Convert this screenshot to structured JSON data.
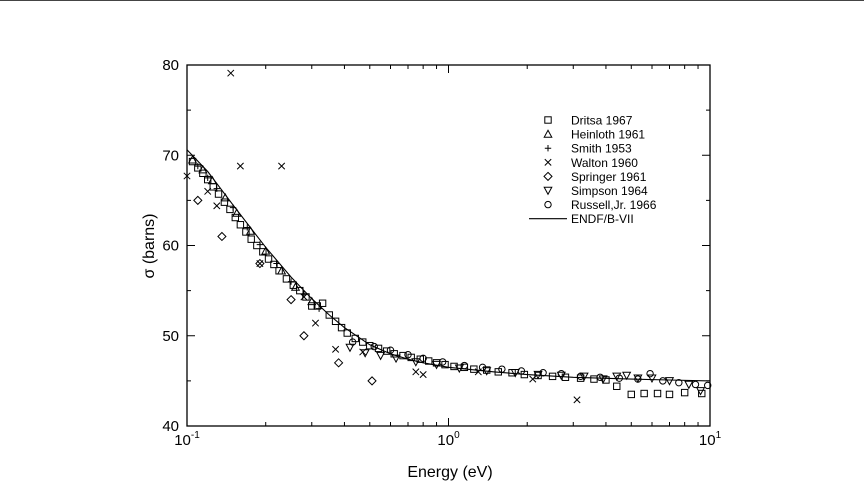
{
  "chart_data": {
    "type": "scatter",
    "title": "",
    "xlabel": "Energy (eV)",
    "ylabel": "σ (barns)",
    "xscale": "log",
    "xlim": [
      0.1,
      10
    ],
    "ylim": [
      40,
      80
    ],
    "grid": false,
    "legend_position": "top-right",
    "x_ticks": [
      {
        "base": "10",
        "exp": "-1"
      },
      {
        "base": "10",
        "exp": "0"
      },
      {
        "base": "10",
        "exp": "1"
      }
    ],
    "y_ticks": [
      "40",
      "50",
      "60",
      "70",
      "80"
    ],
    "series": [
      {
        "name": "Dritsa 1967",
        "marker": "square",
        "points": [
          [
            0.105,
            69.3
          ],
          [
            0.11,
            68.6
          ],
          [
            0.115,
            68.0
          ],
          [
            0.12,
            67.3
          ],
          [
            0.126,
            66.5
          ],
          [
            0.132,
            65.7
          ],
          [
            0.139,
            64.8
          ],
          [
            0.146,
            64.0
          ],
          [
            0.153,
            63.1
          ],
          [
            0.16,
            62.3
          ],
          [
            0.168,
            61.5
          ],
          [
            0.176,
            60.7
          ],
          [
            0.185,
            60.0
          ],
          [
            0.195,
            59.3
          ],
          [
            0.205,
            58.5
          ],
          [
            0.215,
            57.9
          ],
          [
            0.225,
            57.2
          ],
          [
            0.24,
            56.3
          ],
          [
            0.255,
            55.6
          ],
          [
            0.27,
            55.0
          ],
          [
            0.285,
            54.3
          ],
          [
            0.3,
            53.3
          ],
          [
            0.315,
            53.3
          ],
          [
            0.33,
            53.6
          ],
          [
            0.35,
            52.3
          ],
          [
            0.37,
            51.6
          ],
          [
            0.39,
            50.9
          ],
          [
            0.41,
            50.3
          ],
          [
            0.44,
            49.7
          ],
          [
            0.47,
            49.3
          ],
          [
            0.5,
            48.9
          ],
          [
            0.54,
            48.6
          ],
          [
            0.58,
            48.3
          ],
          [
            0.62,
            48.0
          ],
          [
            0.67,
            47.8
          ],
          [
            0.72,
            47.6
          ],
          [
            0.78,
            47.4
          ],
          [
            0.84,
            47.2
          ],
          [
            0.9,
            47.0
          ],
          [
            0.97,
            46.8
          ],
          [
            1.05,
            46.6
          ],
          [
            1.15,
            46.5
          ],
          [
            1.25,
            46.3
          ],
          [
            1.4,
            46.2
          ],
          [
            1.55,
            46.0
          ],
          [
            1.75,
            45.9
          ],
          [
            1.95,
            45.7
          ],
          [
            2.2,
            45.6
          ],
          [
            2.5,
            45.5
          ],
          [
            2.8,
            45.4
          ],
          [
            3.2,
            45.3
          ],
          [
            3.6,
            45.2
          ],
          [
            4.0,
            45.1
          ],
          [
            4.4,
            44.4
          ],
          [
            5.0,
            43.5
          ],
          [
            5.6,
            43.6
          ],
          [
            6.3,
            43.6
          ],
          [
            7.0,
            43.5
          ],
          [
            8.0,
            43.7
          ],
          [
            9.3,
            43.6
          ]
        ]
      },
      {
        "name": "Heinloth 1961",
        "marker": "triangle-up",
        "points": [
          [
            0.105,
            69.5
          ],
          [
            0.115,
            68.4
          ],
          [
            0.125,
            67.2
          ],
          [
            0.14,
            65.3
          ],
          [
            0.155,
            63.6
          ],
          [
            0.175,
            61.6
          ],
          [
            0.2,
            59.4
          ],
          [
            0.23,
            57.2
          ],
          [
            0.26,
            55.4
          ],
          [
            0.3,
            53.8
          ]
        ]
      },
      {
        "name": "Smith 1953",
        "marker": "plus",
        "points": [
          [
            0.11,
            68.8
          ],
          [
            0.12,
            67.5
          ],
          [
            0.13,
            66.3
          ],
          [
            0.15,
            64.2
          ],
          [
            0.17,
            62.0
          ],
          [
            0.19,
            60.1
          ],
          [
            0.22,
            58.0
          ],
          [
            0.25,
            56.0
          ],
          [
            0.28,
            54.6
          ],
          [
            0.32,
            53.0
          ]
        ]
      },
      {
        "name": "Walton 1960",
        "marker": "x",
        "points": [
          [
            0.1,
            67.7
          ],
          [
            0.12,
            66.0
          ],
          [
            0.13,
            64.4
          ],
          [
            0.147,
            79.1
          ],
          [
            0.16,
            68.8
          ],
          [
            0.19,
            58.0
          ],
          [
            0.23,
            68.8
          ],
          [
            0.28,
            54.3
          ],
          [
            0.31,
            51.4
          ],
          [
            0.37,
            48.5
          ],
          [
            0.47,
            48.2
          ],
          [
            0.75,
            46.0
          ],
          [
            0.8,
            45.7
          ],
          [
            1.3,
            46.0
          ],
          [
            2.1,
            45.2
          ],
          [
            3.1,
            42.9
          ]
        ]
      },
      {
        "name": "Springer 1961",
        "marker": "diamond",
        "points": [
          [
            0.11,
            65.0
          ],
          [
            0.136,
            61.0
          ],
          [
            0.19,
            58.0
          ],
          [
            0.25,
            54.0
          ],
          [
            0.28,
            50.0
          ],
          [
            0.38,
            47.0
          ],
          [
            0.51,
            45.0
          ]
        ]
      },
      {
        "name": "Simpson 1964",
        "marker": "triangle-down",
        "points": [
          [
            0.42,
            48.7
          ],
          [
            0.48,
            48.1
          ],
          [
            0.55,
            47.8
          ],
          [
            0.63,
            47.5
          ],
          [
            0.75,
            47.1
          ],
          [
            0.9,
            46.8
          ],
          [
            1.1,
            46.4
          ],
          [
            1.4,
            46.1
          ],
          [
            1.8,
            45.9
          ],
          [
            2.2,
            45.7
          ],
          [
            2.7,
            45.6
          ],
          [
            3.3,
            45.5
          ],
          [
            3.9,
            45.2
          ],
          [
            4.4,
            45.5
          ],
          [
            4.8,
            45.6
          ],
          [
            5.3,
            45.3
          ],
          [
            6.0,
            45.3
          ],
          [
            7.0,
            45.0
          ],
          [
            8.3,
            44.6
          ],
          [
            9.2,
            43.9
          ]
        ]
      },
      {
        "name": "Russell,Jr. 1966",
        "marker": "circle",
        "points": [
          [
            0.43,
            49.3
          ],
          [
            0.52,
            48.8
          ],
          [
            0.6,
            48.4
          ],
          [
            0.7,
            47.9
          ],
          [
            0.8,
            47.5
          ],
          [
            0.95,
            47.1
          ],
          [
            1.15,
            46.7
          ],
          [
            1.35,
            46.5
          ],
          [
            1.6,
            46.3
          ],
          [
            1.9,
            46.1
          ],
          [
            2.3,
            45.9
          ],
          [
            2.7,
            45.8
          ],
          [
            3.2,
            45.5
          ],
          [
            3.8,
            45.4
          ],
          [
            4.5,
            45.3
          ],
          [
            5.3,
            45.2
          ],
          [
            5.9,
            45.8
          ],
          [
            6.6,
            45.0
          ],
          [
            7.6,
            44.8
          ],
          [
            8.8,
            44.6
          ],
          [
            9.8,
            44.5
          ]
        ]
      },
      {
        "name": "ENDF/B-VII",
        "marker": "line",
        "points": [
          [
            0.1,
            70.6
          ],
          [
            0.12,
            68.2
          ],
          [
            0.15,
            64.5
          ],
          [
            0.18,
            61.5
          ],
          [
            0.2,
            59.8
          ],
          [
            0.25,
            56.5
          ],
          [
            0.3,
            54.1
          ],
          [
            0.35,
            52.3
          ],
          [
            0.4,
            50.9
          ],
          [
            0.5,
            49.0
          ],
          [
            0.6,
            48.0
          ],
          [
            0.7,
            47.4
          ],
          [
            0.8,
            47.0
          ],
          [
            1.0,
            46.5
          ],
          [
            1.5,
            46.0
          ],
          [
            2.0,
            45.7
          ],
          [
            3.0,
            45.4
          ],
          [
            5.0,
            45.2
          ],
          [
            7.0,
            45.1
          ],
          [
            10.0,
            45.0
          ]
        ]
      }
    ]
  }
}
